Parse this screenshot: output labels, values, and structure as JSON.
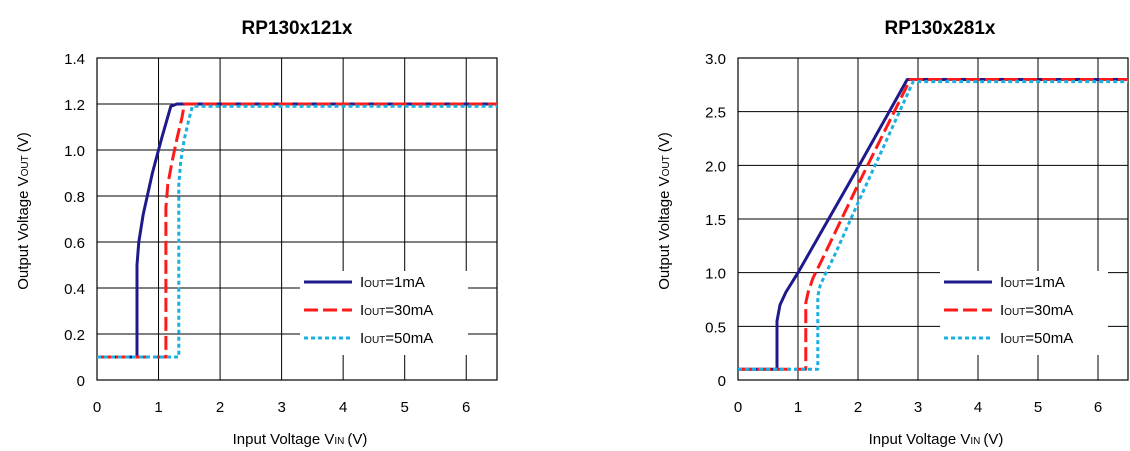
{
  "chart_data": [
    {
      "type": "line",
      "title": "RP130x121x",
      "xlabel_main": "Input Voltage V",
      "xlabel_sub": "IN",
      "xlabel_unit": "(V)",
      "ylabel_main": "Output Voltage V",
      "ylabel_sub": "OUT",
      "ylabel_unit": "(V)",
      "xlim": [
        0,
        6.5
      ],
      "ylim": [
        0,
        1.4
      ],
      "xticks": [
        0,
        1,
        2,
        3,
        4,
        5,
        6
      ],
      "xtick_labels": [
        "0",
        "1",
        "2",
        "3",
        "4",
        "5",
        "6"
      ],
      "yticks": [
        0,
        0.2,
        0.4,
        0.6,
        0.8,
        1.0,
        1.2,
        1.4
      ],
      "ytick_labels": [
        "0",
        "0.2",
        "0.4",
        "0.6",
        "0.8",
        "1.0",
        "1.2",
        "1.4"
      ],
      "grid": true,
      "legend_position": "bottom-right",
      "series": [
        {
          "name": "IOUT=1mA",
          "legend_main": "I",
          "legend_sub": "OUT",
          "legend_rest": "=1mA",
          "color": "#1f1a8c",
          "style": "solid",
          "x": [
            0,
            0.65,
            0.65,
            0.68,
            0.75,
            0.9,
            1.05,
            1.2,
            1.3,
            6.5
          ],
          "y": [
            0.1,
            0.1,
            0.5,
            0.6,
            0.72,
            0.9,
            1.05,
            1.19,
            1.2,
            1.2
          ]
        },
        {
          "name": "IOUT=30mA",
          "legend_main": "I",
          "legend_sub": "OUT",
          "legend_rest": "=30mA",
          "color": "#ff1a1a",
          "style": "dashed",
          "x": [
            0,
            1.12,
            1.12,
            1.15,
            1.22,
            1.3,
            1.38,
            1.42,
            6.5
          ],
          "y": [
            0.1,
            0.1,
            0.75,
            0.85,
            0.95,
            1.05,
            1.14,
            1.2,
            1.2
          ]
        },
        {
          "name": "IOUT=50mA",
          "legend_main": "I",
          "legend_sub": "OUT",
          "legend_rest": "=50mA",
          "color": "#1ab0e0",
          "style": "dotted",
          "x": [
            0,
            1.33,
            1.33,
            1.36,
            1.42,
            1.5,
            1.55,
            6.5
          ],
          "y": [
            0.1,
            0.1,
            0.85,
            0.95,
            1.05,
            1.14,
            1.19,
            1.19
          ]
        }
      ]
    },
    {
      "type": "line",
      "title": "RP130x281x",
      "xlabel_main": "Input Voltage V",
      "xlabel_sub": "IN",
      "xlabel_unit": "(V)",
      "ylabel_main": "Output Voltage V",
      "ylabel_sub": "OUT",
      "ylabel_unit": "(V)",
      "xlim": [
        0,
        6.5
      ],
      "ylim": [
        0,
        3.0
      ],
      "xticks": [
        0,
        1,
        2,
        3,
        4,
        5,
        6
      ],
      "xtick_labels": [
        "0",
        "1",
        "2",
        "3",
        "4",
        "5",
        "6"
      ],
      "yticks": [
        0,
        0.5,
        1.0,
        1.5,
        2.0,
        2.5,
        3.0
      ],
      "ytick_labels": [
        "0",
        "0.5",
        "1.0",
        "1.5",
        "2.0",
        "2.5",
        "3.0"
      ],
      "grid": true,
      "legend_position": "bottom-right",
      "series": [
        {
          "name": "IOUT=1mA",
          "legend_main": "I",
          "legend_sub": "OUT",
          "legend_rest": "=1mA",
          "color": "#1f1a8c",
          "style": "solid",
          "x": [
            0,
            0.65,
            0.65,
            0.7,
            0.8,
            1.0,
            2.0,
            2.82,
            6.5
          ],
          "y": [
            0.1,
            0.1,
            0.55,
            0.7,
            0.82,
            1.0,
            1.98,
            2.8,
            2.8
          ]
        },
        {
          "name": "IOUT=30mA",
          "legend_main": "I",
          "legend_sub": "OUT",
          "legend_rest": "=30mA",
          "color": "#ff1a1a",
          "style": "dashed",
          "x": [
            0,
            1.13,
            1.13,
            1.17,
            1.25,
            1.4,
            2.0,
            2.87,
            6.5
          ],
          "y": [
            0.1,
            0.1,
            0.72,
            0.82,
            0.95,
            1.12,
            1.82,
            2.8,
            2.8
          ]
        },
        {
          "name": "IOUT=50mA",
          "legend_main": "I",
          "legend_sub": "OUT",
          "legend_rest": "=50mA",
          "color": "#1ab0e0",
          "style": "dotted",
          "x": [
            0,
            1.33,
            1.33,
            1.37,
            1.45,
            1.6,
            2.0,
            2.92,
            6.5
          ],
          "y": [
            0.1,
            0.1,
            0.78,
            0.88,
            0.98,
            1.15,
            1.65,
            2.78,
            2.78
          ]
        }
      ]
    }
  ]
}
